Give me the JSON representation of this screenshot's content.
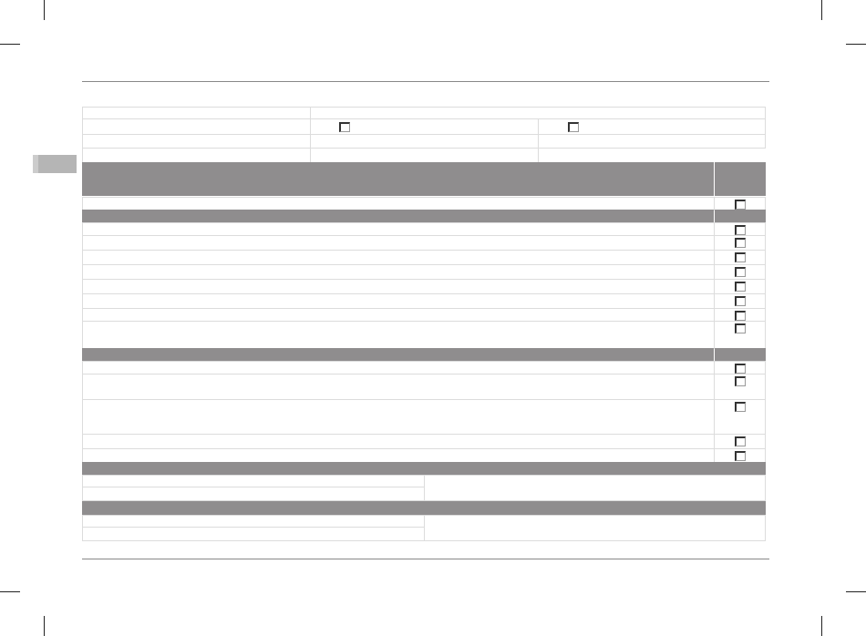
{
  "colors": {
    "header_fill": "#8f8d8e",
    "cell_border": "#dcdcdc",
    "side_tab": "#b5b5b5"
  },
  "form": {
    "top_rows": [
      {
        "checkboxes": []
      },
      {
        "checkboxes": [
          {
            "checked": false
          },
          {
            "checked": false
          }
        ]
      },
      {
        "checkboxes": []
      },
      {
        "checkboxes": []
      }
    ],
    "section1_rows": [
      {
        "checked": false
      }
    ],
    "section2_rows": [
      {
        "checked": false
      },
      {
        "checked": false
      },
      {
        "checked": false
      },
      {
        "checked": false
      },
      {
        "checked": false
      },
      {
        "checked": false
      },
      {
        "checked": false
      },
      {
        "checked": false
      }
    ],
    "section3_rows": [
      {
        "checked": false
      },
      {
        "checked": false
      },
      {
        "checked": false
      },
      {
        "checked": false
      },
      {
        "checked": false
      }
    ]
  }
}
